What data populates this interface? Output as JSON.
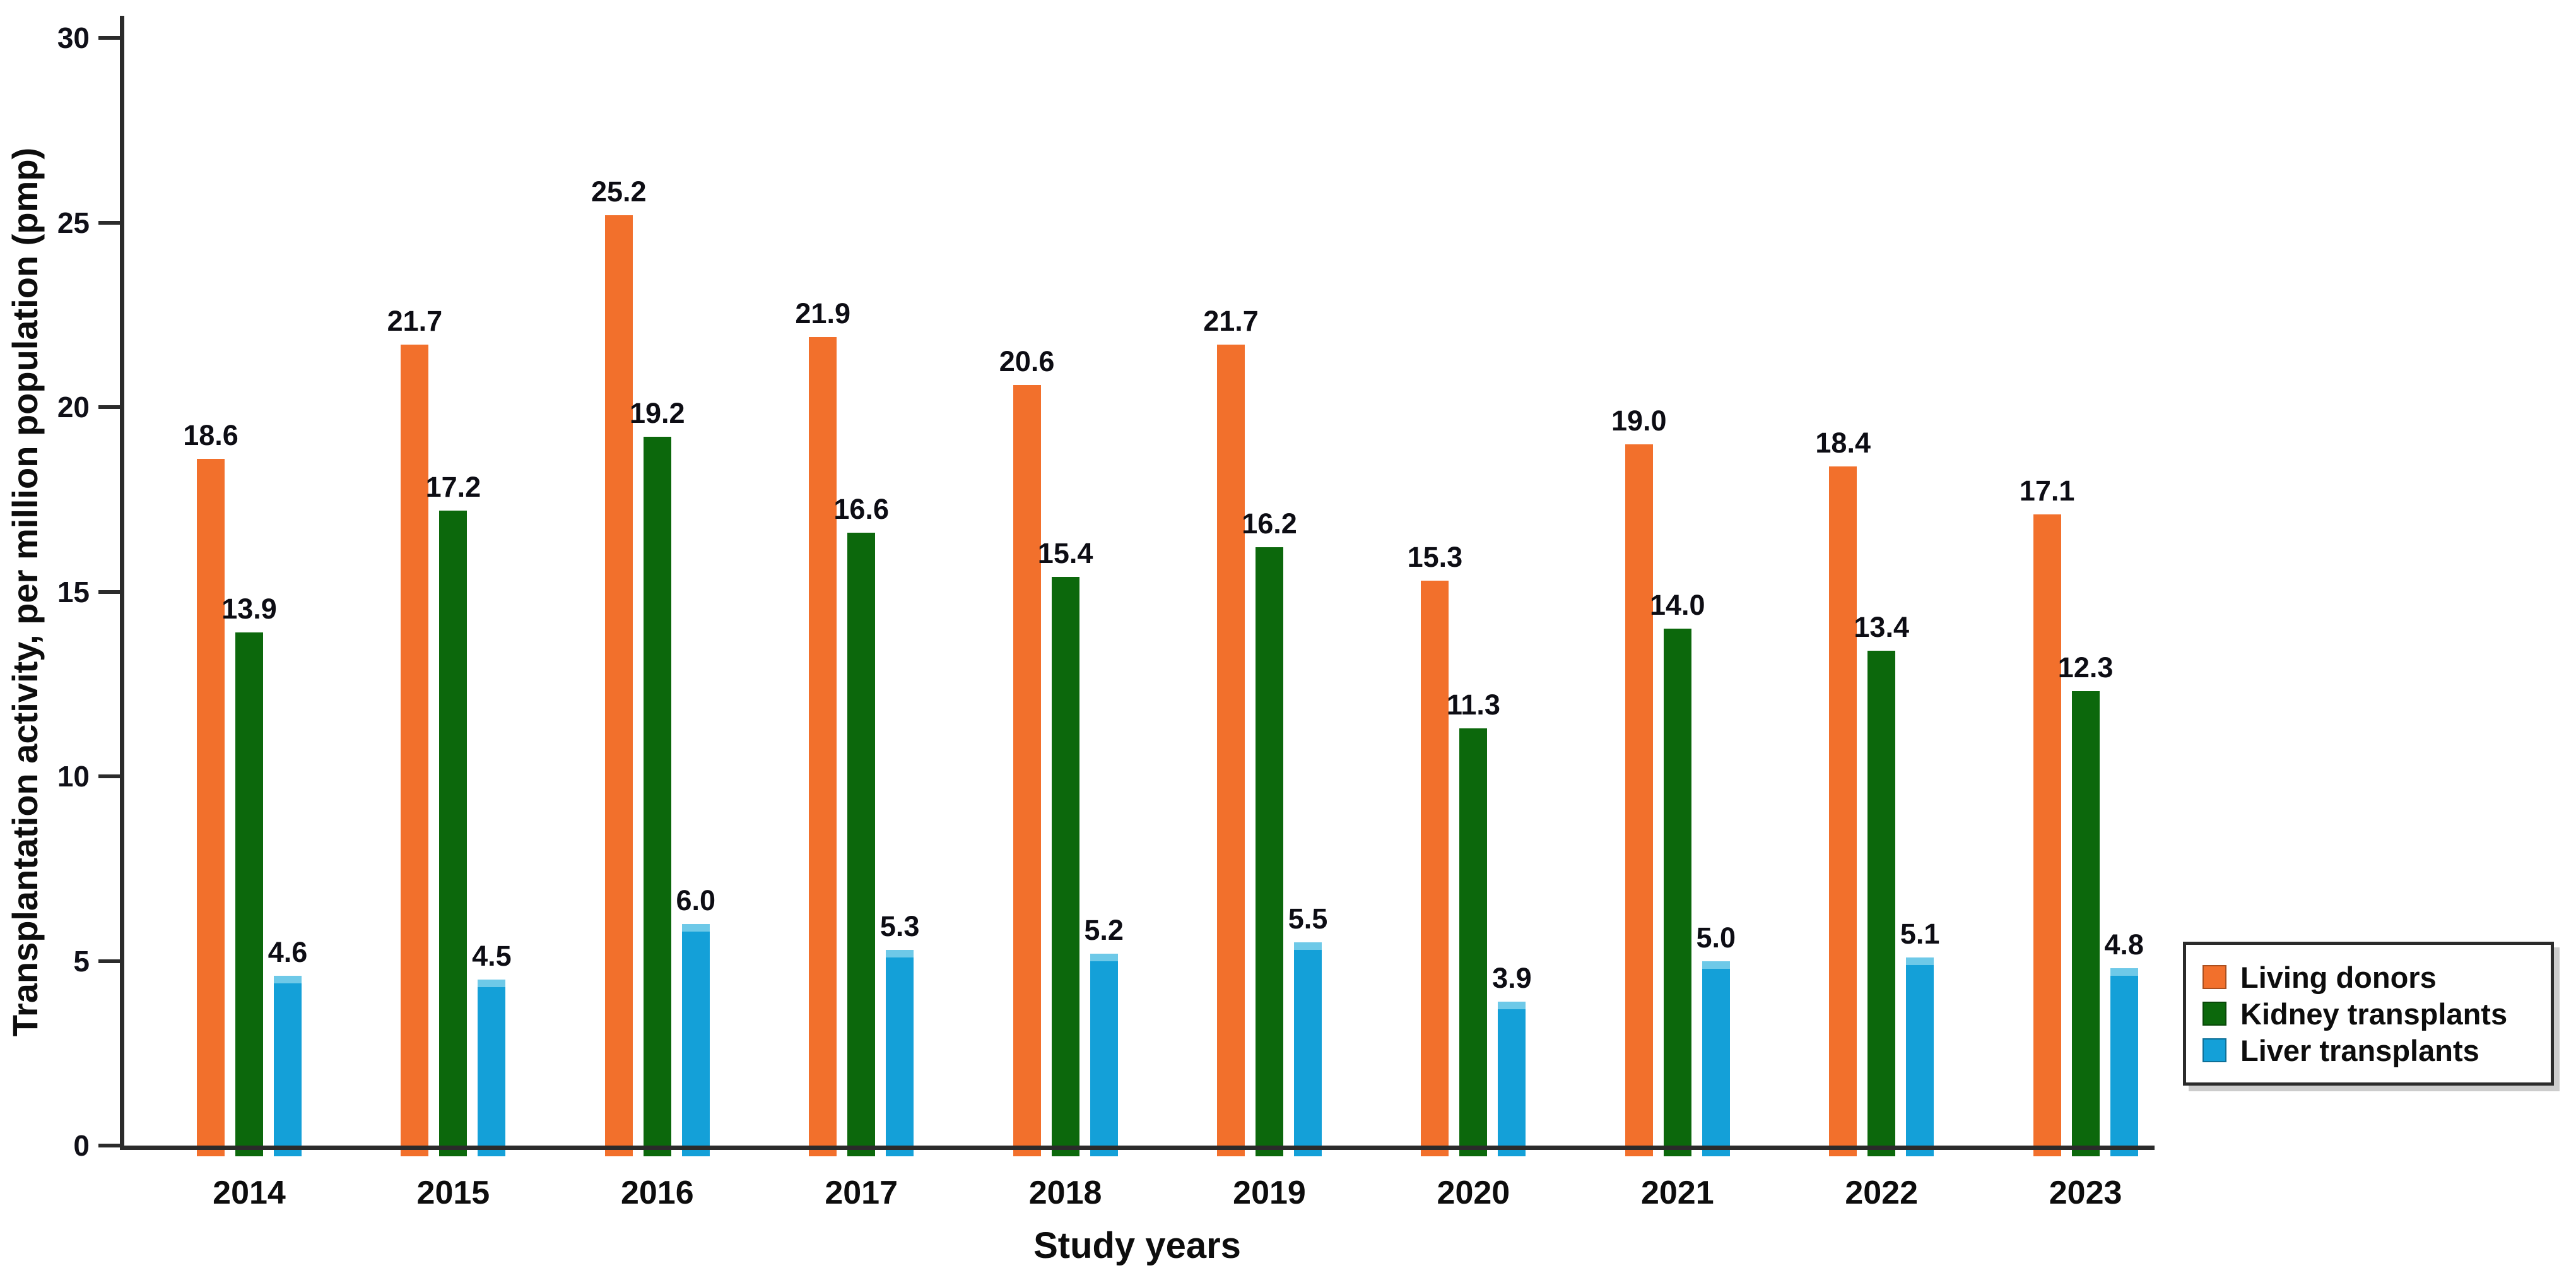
{
  "chart_data": {
    "type": "bar",
    "title": "",
    "xlabel": "Study years",
    "ylabel": "Transplantation activity, per million population (pmp)",
    "ylim": [
      0,
      30
    ],
    "yticks": [
      0,
      5,
      10,
      15,
      20,
      25,
      30
    ],
    "grid": false,
    "legend_position": "right-bottom",
    "value_labels": true,
    "categories": [
      "2014",
      "2015",
      "2016",
      "2017",
      "2018",
      "2019",
      "2020",
      "2021",
      "2022",
      "2023"
    ],
    "series": [
      {
        "name": "Living donors",
        "color": "#F2702C",
        "values": [
          18.6,
          21.7,
          25.2,
          21.9,
          20.6,
          21.7,
          15.3,
          19.0,
          18.4,
          17.1
        ]
      },
      {
        "name": "Kidney transplants",
        "color": "#0C680C",
        "values": [
          13.9,
          17.2,
          19.2,
          16.6,
          15.4,
          16.2,
          11.3,
          14.0,
          13.4,
          12.3
        ]
      },
      {
        "name": "Liver transplants",
        "color": "#14A0D8",
        "values": [
          4.6,
          4.5,
          6.0,
          5.3,
          5.2,
          5.5,
          3.9,
          5.0,
          5.1,
          4.8
        ]
      }
    ],
    "colors": {
      "axis": "#2B2B2B",
      "text": "#0D0D0D",
      "background": "#FFFFFF",
      "liver_bar_cap": "#6EC9E8"
    }
  }
}
